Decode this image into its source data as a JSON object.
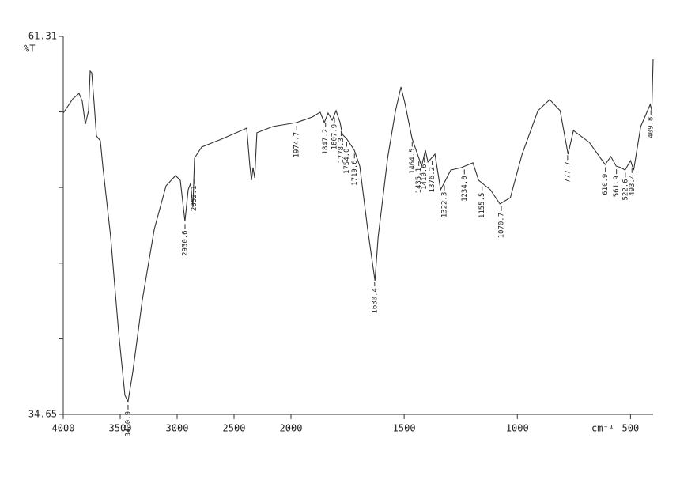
{
  "chart_data": {
    "type": "line",
    "y_label": "%T",
    "x_label": "cm⁻¹",
    "xlim": [
      4000,
      400
    ],
    "ylim": [
      34.65,
      61.31
    ],
    "xticks": [
      4000,
      3500,
      3000,
      2500,
      2000,
      1500,
      1000,
      500
    ],
    "yticks": [
      34.65,
      61.31
    ],
    "yminorticks": [
      39.98,
      45.31,
      50.65,
      55.98
    ],
    "color": "#333333",
    "x": [
      4000,
      3917,
      3861,
      3833,
      3806,
      3778,
      3764,
      3750,
      3729,
      3708,
      3674,
      3653,
      3583,
      3514,
      3458,
      3431,
      3389,
      3306,
      3201,
      3097,
      3014,
      2972,
      2931,
      2903,
      2882,
      2861,
      2847,
      2785,
      2611,
      2437,
      2389,
      2361,
      2347,
      2333,
      2319,
      2299,
      2160,
      1976,
      1906,
      1871,
      1853,
      1836,
      1818,
      1801,
      1783,
      1773,
      1755,
      1720,
      1696,
      1661,
      1629,
      1615,
      1573,
      1538,
      1514,
      1497,
      1465,
      1441,
      1423,
      1406,
      1395,
      1364,
      1339,
      1294,
      1248,
      1196,
      1171,
      1119,
      1077,
      1031,
      979,
      909,
      857,
      811,
      776,
      752,
      682,
      612,
      587,
      563,
      542,
      524,
      500,
      486,
      455,
      413,
      406,
      400
    ],
    "values": [
      55.9,
      56.9,
      57.29,
      56.74,
      55.12,
      56.07,
      58.86,
      58.74,
      56.62,
      54.28,
      53.95,
      52.16,
      47.14,
      40.45,
      35.99,
      35.54,
      37.66,
      42.68,
      47.7,
      50.77,
      51.49,
      51.16,
      48.26,
      50.49,
      50.94,
      49.26,
      52.72,
      53.5,
      54.06,
      54.67,
      54.84,
      52.16,
      51.16,
      52.05,
      51.33,
      54.51,
      54.95,
      55.23,
      55.62,
      55.96,
      55.23,
      55.9,
      55.4,
      56.07,
      55.23,
      54.39,
      54.11,
      53.28,
      52.16,
      47.7,
      44.08,
      47.14,
      52.72,
      56.07,
      57.74,
      56.62,
      54.11,
      53.0,
      52.16,
      53.28,
      52.44,
      53.0,
      50.49,
      51.88,
      52.05,
      52.39,
      51.16,
      50.49,
      49.49,
      49.93,
      53.0,
      56.07,
      56.85,
      56.07,
      53.0,
      54.67,
      53.83,
      52.27,
      52.83,
      52.16,
      52.05,
      51.88,
      52.55,
      51.88,
      54.95,
      56.51,
      56.07,
      59.69
    ],
    "peaks": [
      {
        "value": 3430.9,
        "label": "3430.9"
      },
      {
        "value": 2930.6,
        "label": "2930.6"
      },
      {
        "value": 2852.1,
        "label": "2852.1"
      },
      {
        "value": 1974.7,
        "label": "1974.7"
      },
      {
        "value": 1847.2,
        "label": "1847.2"
      },
      {
        "value": 1807.9,
        "label": "1807.9"
      },
      {
        "value": 1778.3,
        "label": "1778.3"
      },
      {
        "value": 1754.0,
        "label": "1754.0"
      },
      {
        "value": 1719.6,
        "label": "1719.6"
      },
      {
        "value": 1630.4,
        "label": "1630.4"
      },
      {
        "value": 1464.5,
        "label": "1464.5"
      },
      {
        "value": 1435.1,
        "label": "1435.1"
      },
      {
        "value": 1410.6,
        "label": "1410.6"
      },
      {
        "value": 1376.2,
        "label": "1376.2"
      },
      {
        "value": 1322.3,
        "label": "1322.3"
      },
      {
        "value": 1234.0,
        "label": "1234.0"
      },
      {
        "value": 1155.5,
        "label": "1155.5"
      },
      {
        "value": 1070.7,
        "label": "1070.7"
      },
      {
        "value": 777.7,
        "label": "777.7"
      },
      {
        "value": 610.9,
        "label": "610.9"
      },
      {
        "value": 561.9,
        "label": "561.9"
      },
      {
        "value": 522.6,
        "label": "522.6"
      },
      {
        "value": 493.4,
        "label": "493.4"
      },
      {
        "value": 409.8,
        "label": "409.8"
      }
    ]
  }
}
